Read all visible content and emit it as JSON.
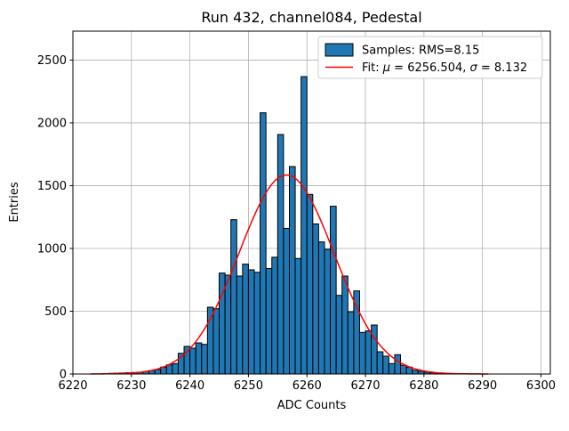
{
  "title": "Run 432, channel084, Pedestal",
  "xlabel": "ADC Counts",
  "ylabel": "Entries",
  "legend": {
    "samples_label": "Samples: RMS=8.15",
    "fit_prefix": "Fit: ",
    "fit_mu_symbol": "μ",
    "fit_mu_value": " = 6256.504, ",
    "fit_sigma_symbol": "σ",
    "fit_sigma_value": " = 8.132",
    "position": "upper right"
  },
  "chart_data": {
    "type": "bar",
    "subtype": "histogram",
    "title": "Run 432, channel084, Pedestal",
    "xlabel": "ADC Counts",
    "ylabel": "Entries",
    "bins": {
      "start": 6225,
      "width": 1
    },
    "values": [
      3,
      5,
      6,
      8,
      10,
      12,
      14,
      19,
      28,
      35,
      55,
      73,
      83,
      165,
      220,
      206,
      248,
      236,
      532,
      520,
      804,
      787,
      1229,
      780,
      875,
      830,
      810,
      2080,
      840,
      930,
      1907,
      1160,
      1652,
      920,
      2368,
      1430,
      1195,
      1052,
      993,
      1336,
      626,
      780,
      496,
      662,
      331,
      343,
      390,
      177,
      142,
      83,
      154,
      70,
      55,
      30,
      22,
      15,
      10,
      6,
      4
    ],
    "fit": {
      "type": "gaussian",
      "mu": 6256.504,
      "sigma": 8.132,
      "peak": 1585,
      "x_range": [
        6223,
        6291
      ]
    },
    "xlim": [
      6220,
      6301.6
    ],
    "ylim": [
      0,
      2730
    ],
    "xticks": [
      6220,
      6230,
      6240,
      6250,
      6260,
      6270,
      6280,
      6290,
      6300
    ],
    "yticks": [
      0,
      500,
      1000,
      1500,
      2000,
      2500
    ],
    "grid": true,
    "legend_position": "upper right",
    "colors": {
      "bar_fill": "#1f77b4",
      "bar_edge": "#000000",
      "fit_line": "#ff0000",
      "grid": "#b0b0b0",
      "spine": "#000000",
      "background": "#ffffff",
      "legend_border": "#cccccc"
    }
  }
}
